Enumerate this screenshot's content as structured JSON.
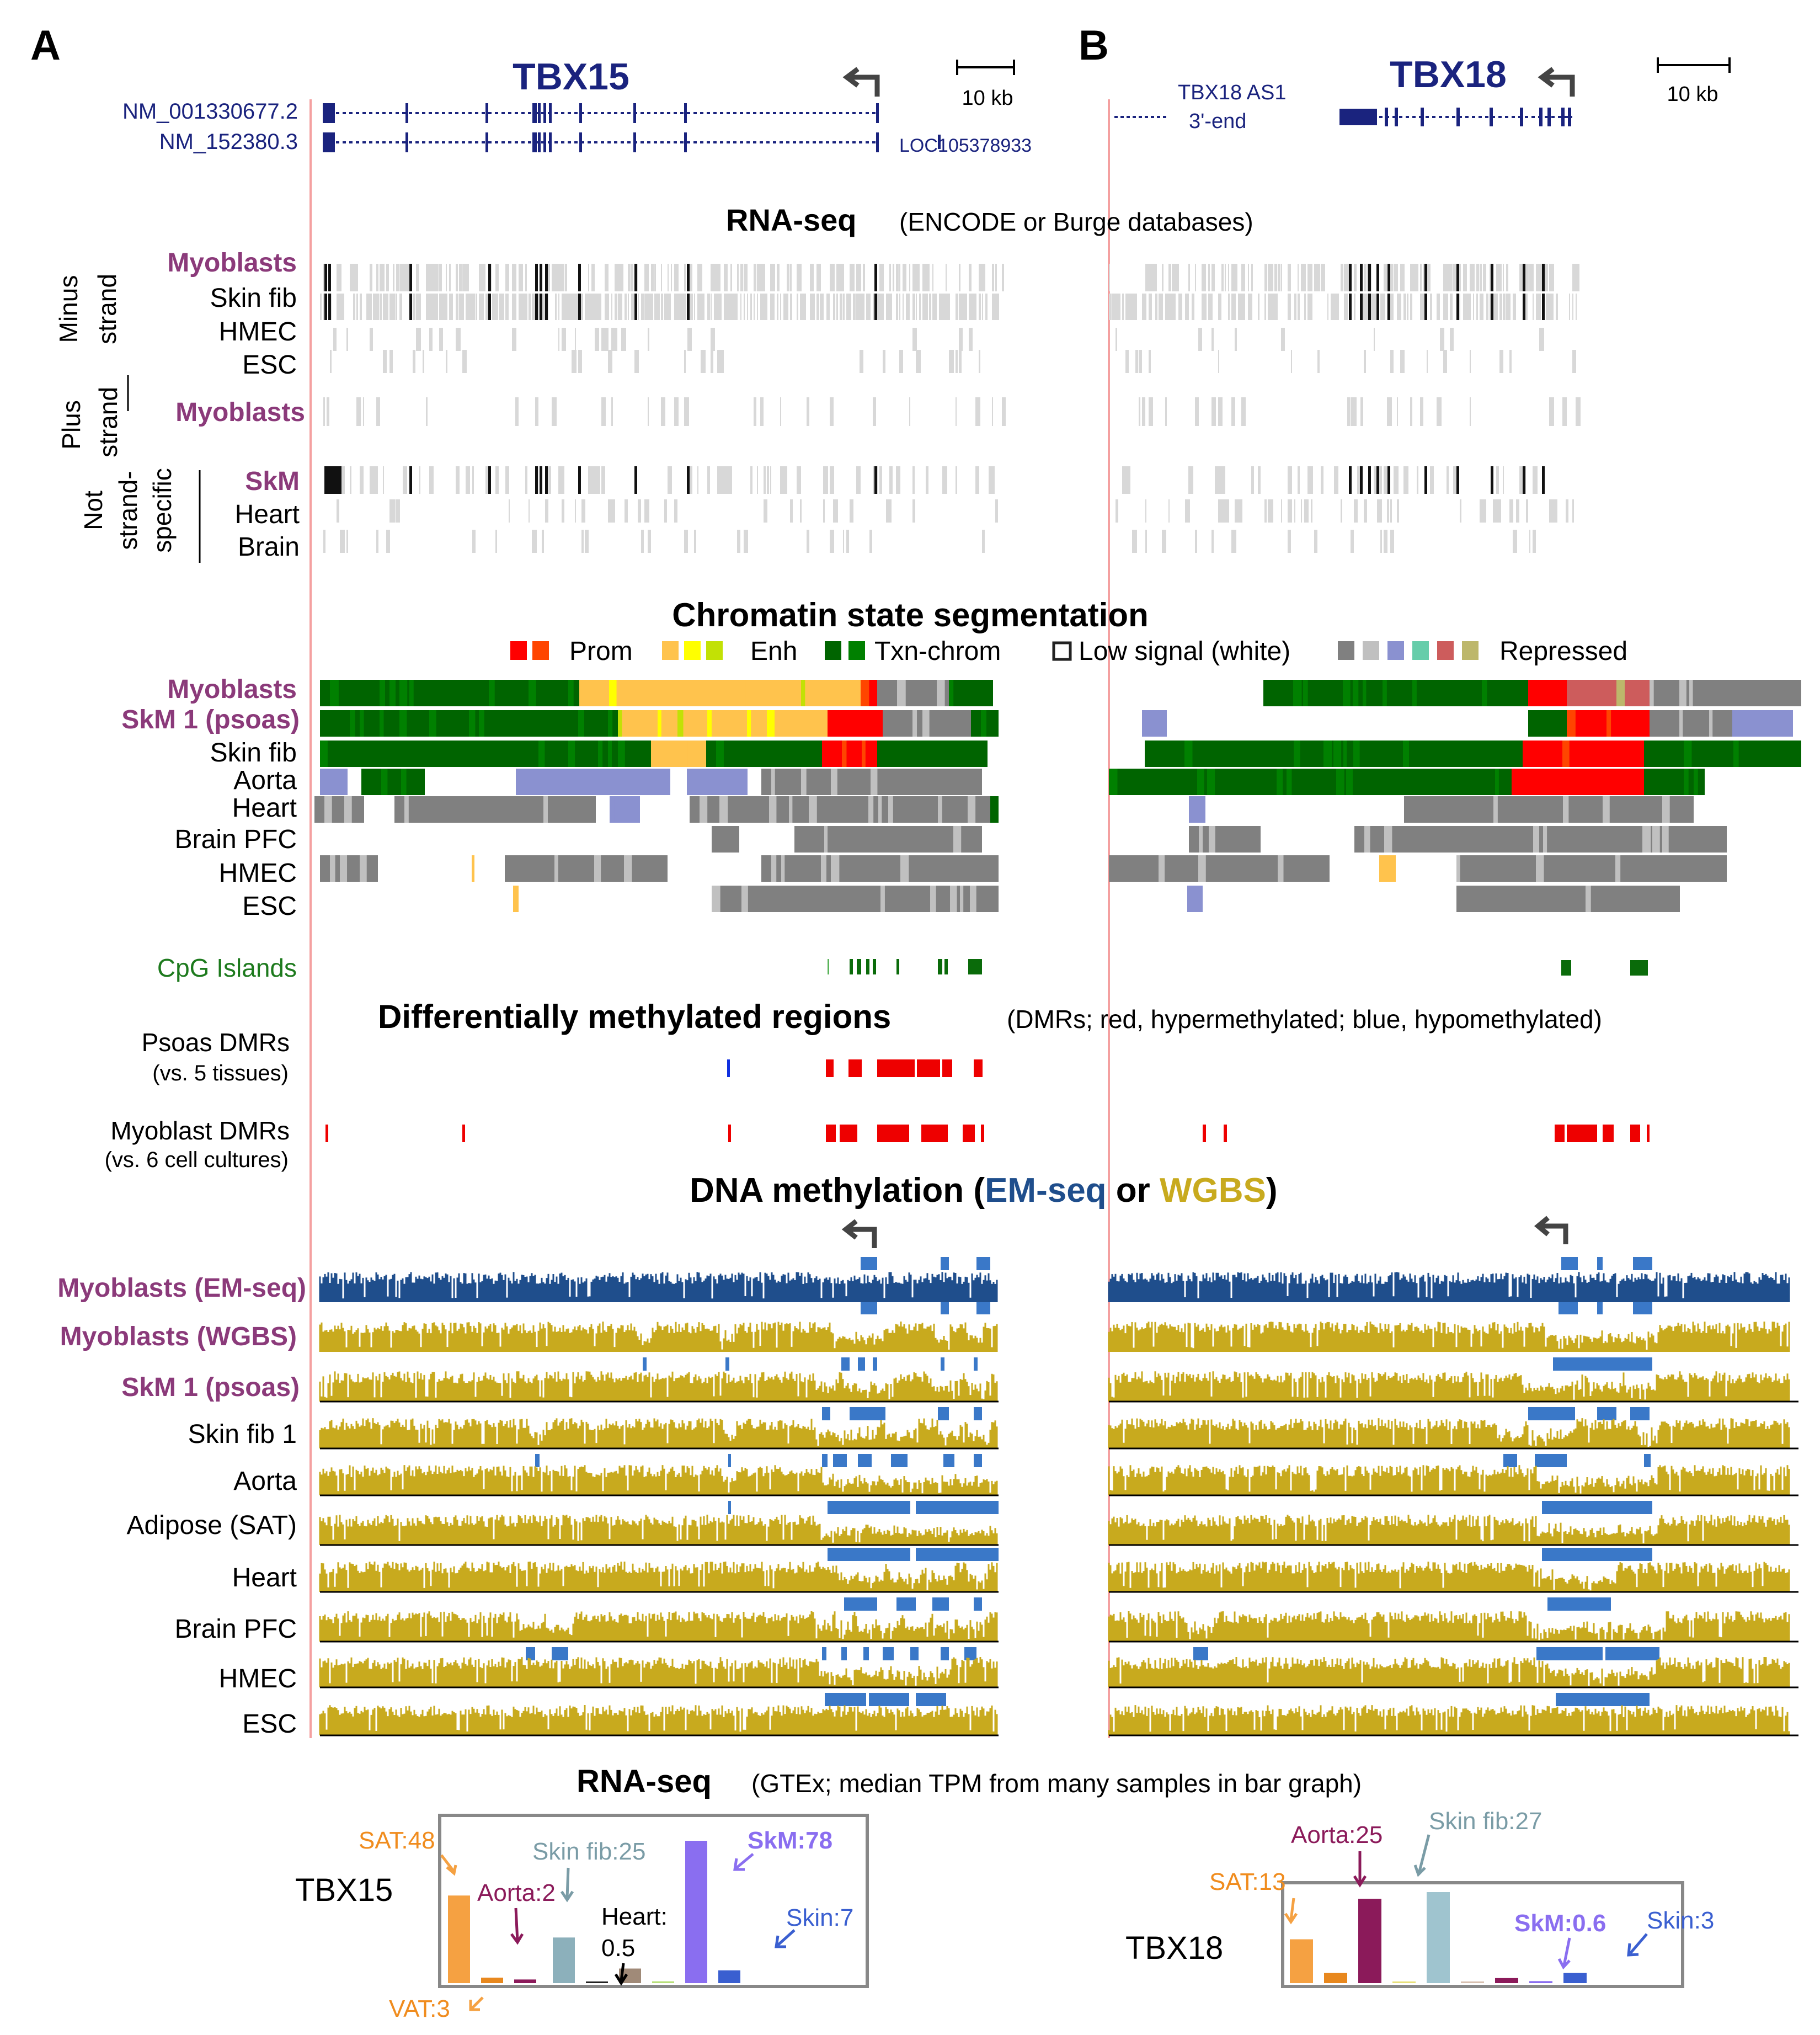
{
  "panels": {
    "a": {
      "letter": "A",
      "gene": "TBX15",
      "scale": "10 kb",
      "transcripts": [
        "NM_001330677.2",
        "NM_152380.3"
      ],
      "neighbor": "LOC105378933"
    },
    "b": {
      "letter": "B",
      "gene": "TBX18",
      "scale": "10 kb",
      "antisense_line1": "TBX18 AS1",
      "antisense_line2": "3'-end"
    }
  },
  "rnaseq": {
    "title": "RNA-seq",
    "subtitle": "(ENCODE or Burge databases)",
    "group_minus_1": "Minus",
    "group_minus_2": "strand",
    "group_plus_1": "Plus",
    "group_plus_2": "strand",
    "group_not_1": "Not",
    "group_not_2": "strand-",
    "group_not_3": "specific",
    "tracks": [
      "Myoblasts",
      "Skin fib",
      "HMEC",
      "ESC",
      "Myoblasts",
      "SkM",
      "Heart",
      "Brain"
    ]
  },
  "chromatin": {
    "title": "Chromatin state segmentation",
    "legend": {
      "prom": "Prom",
      "enh": "Enh",
      "txn": "Txn-chrom",
      "low": "Low signal (white)",
      "repressed": "Repressed"
    },
    "colors": {
      "prom": [
        "#ff0000",
        "#ff4500"
      ],
      "enh": [
        "#ffc34d",
        "#ffff00",
        "#c2e105"
      ],
      "txn": [
        "#006400",
        "#008000"
      ],
      "repressed": [
        "#808080",
        "#c0c0c0",
        "#8a91d0",
        "#66cdaa",
        "#cd5c5c",
        "#bdb76b"
      ]
    },
    "tracks": [
      "Myoblasts",
      "SkM 1 (psoas)",
      "Skin fib",
      "Aorta",
      "Heart",
      "Brain PFC",
      "HMEC",
      "ESC"
    ]
  },
  "cpg": {
    "label": "CpG Islands"
  },
  "dmr": {
    "title": "Differentially methylated regions",
    "subtitle": "(DMRs; red, hypermethylated; blue, hypomethylated)",
    "psoas_1": "Psoas DMRs",
    "psoas_2": "(vs. 5 tissues)",
    "myo_1": "Myoblast DMRs",
    "myo_2": "(vs. 6 cell cultures)"
  },
  "methylation": {
    "title_a": "DNA methylation (",
    "title_em": "EM-seq",
    "title_or": " or ",
    "title_wgbs": "WGBS",
    "title_end": ")",
    "tracks": [
      "Myoblasts (EM-seq)",
      "Myoblasts (WGBS)",
      "SkM 1 (psoas)",
      "Skin fib 1",
      "Aorta",
      "Adipose (SAT)",
      "Heart",
      "Brain PFC",
      "HMEC",
      "ESC"
    ],
    "colors": {
      "emseq": "#1f4e8c",
      "wgbs": "#c8aa1e",
      "hypo_block": "#3a78c8"
    }
  },
  "gtex": {
    "title": "RNA-seq",
    "subtitle": "(GTEx; median TPM from many samples in bar graph)",
    "chart_data": [
      {
        "type": "bar",
        "gene": "TBX15",
        "ylabel": "median TPM",
        "categories": [
          "SAT",
          "VAT",
          "Aorta",
          "Skin fib",
          "Heart",
          "other-1",
          "other-2",
          "SkM",
          "Skin"
        ],
        "values": [
          48,
          3,
          2,
          25,
          0.5,
          8,
          1,
          78,
          7
        ],
        "colors": [
          "#f5a142",
          "#e8881e",
          "#8b1a5a",
          "#8cb0bb",
          "#222222",
          "#a08a78",
          "#b8e07a",
          "#8a6ef0",
          "#3a5fd0"
        ],
        "labels": {
          "SAT": "SAT:48",
          "VAT": "VAT:3",
          "Aorta": "Aorta:2",
          "Skin fib": "Skin fib:25",
          "Heart_1": "Heart:",
          "Heart_2": "0.5",
          "SkM": "SkM:78",
          "Skin": "Skin:7"
        }
      },
      {
        "type": "bar",
        "gene": "TBX18",
        "ylabel": "median TPM",
        "categories": [
          "SAT",
          "VAT",
          "Aorta",
          "other-1",
          "Skin fib",
          "other-2",
          "other-3",
          "SkM",
          "Skin"
        ],
        "values": [
          13,
          3,
          25,
          0.5,
          27,
          0.5,
          1.5,
          0.6,
          3
        ],
        "colors": [
          "#f5a142",
          "#e8881e",
          "#8b1a5a",
          "#e8e07a",
          "#9fc4cf",
          "#d8c0b0",
          "#8b1a5a",
          "#8a6ef0",
          "#3a5fd0"
        ],
        "labels": {
          "SAT": "SAT:13",
          "Aorta": "Aorta:25",
          "Skin fib": "Skin fib:27",
          "SkM": "SkM:0.6",
          "Skin": "Skin:3"
        }
      }
    ]
  }
}
